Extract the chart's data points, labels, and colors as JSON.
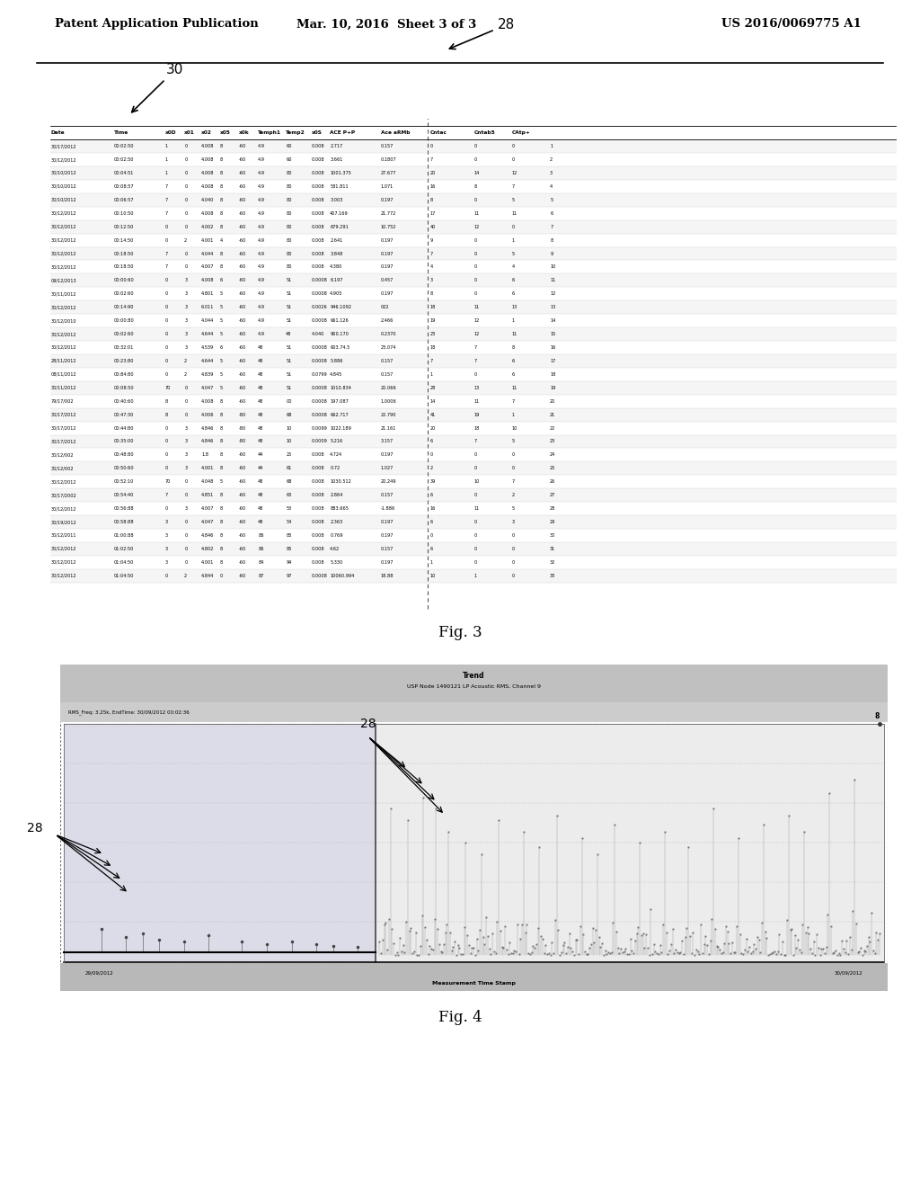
{
  "header_left": "Patent Application Publication",
  "header_mid": "Mar. 10, 2016  Sheet 3 of 3",
  "header_right": "US 2016/0069775 A1",
  "fig3_label": "Fig. 3",
  "fig4_label": "Fig. 4",
  "ref30": "30",
  "ref28_table": "28",
  "ref28_chart1": "28",
  "ref28_chart2": "28",
  "table_headers": [
    "Date",
    "Time",
    "x0D",
    "x01",
    "x02",
    "x05",
    "x0k",
    "Temph1",
    "Temp2",
    "x0S",
    "ACE P+P",
    "Ace aRMb",
    "Cntac",
    "Cntab5",
    "CAtp+",
    ""
  ],
  "table_rows": [
    [
      "30/17/2012",
      "00:02:50",
      "1",
      "0",
      "4.008",
      "8",
      "-60",
      "4.9",
      "60",
      "0.008",
      "2.717",
      "0.157",
      "0",
      "0",
      "0",
      "1"
    ],
    [
      "30/12/2012",
      "00:02:50",
      "1",
      "0",
      "4.008",
      "8",
      "-60",
      "4.9",
      "60",
      "0.008",
      "3.661",
      "0.1807",
      "7",
      "0",
      "0",
      "2"
    ],
    [
      "30/10/2012",
      "00:04:51",
      "1",
      "0",
      "4.008",
      "8",
      "-60",
      "4.9",
      "80",
      "0.008",
      "1001.375",
      "27.677",
      "20",
      "14",
      "12",
      "3"
    ],
    [
      "30/10/2012",
      "00:08:57",
      "7",
      "0",
      "4.008",
      "8",
      "-60",
      "4.9",
      "80",
      "0.008",
      "581.811",
      "1.071",
      "16",
      "8",
      "7",
      "4"
    ],
    [
      "30/10/2012",
      "00:06:57",
      "7",
      "0",
      "4.040",
      "8",
      "-60",
      "4.9",
      "80",
      "0.008",
      "3.003",
      "0.197",
      "8",
      "0",
      "5",
      "5"
    ],
    [
      "30/12/2012",
      "00:10:50",
      "7",
      "0",
      "4.008",
      "8",
      "-60",
      "4.9",
      "80",
      "0.008",
      "407.169",
      "21.772",
      "17",
      "11",
      "11",
      "6"
    ],
    [
      "30/12/2012",
      "00:12:50",
      "0",
      "0",
      "4.002",
      "8",
      "-60",
      "4.9",
      "80",
      "0.008",
      "679.291",
      "10.752",
      "40",
      "12",
      "0",
      "7"
    ],
    [
      "30/12/2012",
      "00:14:50",
      "0",
      "2",
      "4.001",
      "4",
      "-60",
      "4.9",
      "80",
      "0.008",
      "2.641",
      "0.197",
      "9",
      "0",
      "1",
      "8"
    ],
    [
      "30/12/2012",
      "00:18:50",
      "7",
      "0",
      "4.044",
      "8",
      "-60",
      "4.9",
      "80",
      "0.008",
      "3.848",
      "0.197",
      "7",
      "0",
      "5",
      "9"
    ],
    [
      "30/12/2012",
      "00:18:50",
      "7",
      "0",
      "4.007",
      "8",
      "-60",
      "4.9",
      "80",
      "0.008",
      "4.380",
      "0.197",
      "4",
      "0",
      "4",
      "10"
    ],
    [
      "09/12/2013",
      "00:00:60",
      "0",
      "3",
      "4.008",
      "6",
      "-60",
      "4.9",
      "51",
      "0.0008",
      "6.197",
      "0.457",
      "3",
      "0",
      "6",
      "11"
    ],
    [
      "30/11/2012",
      "00:02:60",
      "0",
      "3",
      "4.801",
      "5",
      "-60",
      "4.9",
      "51",
      "0.0008",
      "4.905",
      "0.197",
      "8",
      "0",
      "6",
      "12"
    ],
    [
      "30/12/2012",
      "00:14:90",
      "0",
      "3",
      "6.011",
      "5",
      "-60",
      "4.9",
      "51",
      "0.0026",
      "946.1092",
      "022",
      "18",
      "11",
      "13",
      "13"
    ],
    [
      "30/12/2010",
      "00:00:80",
      "0",
      "3",
      "4.044",
      "5",
      "-60",
      "4.9",
      "51",
      "0.0008",
      "661.126",
      "2.466",
      "19",
      "12",
      "1",
      "14"
    ],
    [
      "30/12/2012",
      "00:02:60",
      "0",
      "3",
      "4.644",
      "5",
      "-60",
      "4.9",
      "48",
      "4.040",
      "900.170",
      "0.2370",
      "23",
      "12",
      "11",
      "15"
    ],
    [
      "30/12/2012",
      "00:32:01",
      "0",
      "3",
      "4.539",
      "6",
      "-60",
      "48",
      "51",
      "0.0008",
      "603.74.5",
      "23.074",
      "18",
      "7",
      "8",
      "16"
    ],
    [
      "28/11/2012",
      "00:23:80",
      "0",
      "2",
      "4.644",
      "5",
      "-60",
      "48",
      "51",
      "0.0008",
      "5.886",
      "0.157",
      "7",
      "7",
      "6",
      "17"
    ],
    [
      "08/11/2012",
      "00:84:80",
      "0",
      "2",
      "4.839",
      "5",
      "-60",
      "48",
      "51",
      "0.0799",
      "4.845",
      "0.157",
      "1",
      "0",
      "6",
      "18"
    ],
    [
      "30/11/2012",
      "00:08:50",
      "70",
      "0",
      "4.047",
      "5",
      "-60",
      "48",
      "51",
      "0.0008",
      "1010.834",
      "20.066",
      "28",
      "13",
      "11",
      "19"
    ],
    [
      "79/17/002",
      "00:40:60",
      "8",
      "0",
      "4.008",
      "8",
      "-60",
      "48",
      "00",
      "0.0008",
      "197.087",
      "1.0006",
      "14",
      "11",
      "7",
      "20"
    ],
    [
      "30/17/2012",
      "00:47:30",
      "8",
      "0",
      "4.006",
      "8",
      "-80",
      "48",
      "68",
      "0.0008",
      "662.717",
      "22.790",
      "41",
      "19",
      "1",
      "21"
    ],
    [
      "30/17/2012",
      "00:44:80",
      "0",
      "3",
      "4.846",
      "8",
      "-80",
      "48",
      "10",
      "0.0099",
      "1022.189",
      "21.161",
      "20",
      "18",
      "10",
      "22"
    ],
    [
      "30/17/2012",
      "00:35:00",
      "0",
      "3",
      "4.846",
      "8",
      "-80",
      "48",
      "10",
      "0.0009",
      "5.216",
      "3.157",
      "6",
      "7",
      "5",
      "23"
    ],
    [
      "30/12/002",
      "00:48:80",
      "0",
      "3",
      "1.8",
      "8",
      "-60",
      "44",
      "25",
      "0.008",
      "4.724",
      "0.197",
      "0",
      "0",
      "0",
      "24"
    ],
    [
      "30/12/002",
      "00:50:60",
      "0",
      "3",
      "4.001",
      "8",
      "-60",
      "44",
      "61",
      "0.008",
      "0.72",
      "1.027",
      "2",
      "0",
      "0",
      "25"
    ],
    [
      "30/12/2012",
      "00:52:10",
      "70",
      "0",
      "4.048",
      "5",
      "-60",
      "48",
      "68",
      "0.008",
      "1030.512",
      "20.249",
      "39",
      "10",
      "7",
      "26"
    ],
    [
      "30/17/2002",
      "00:54:40",
      "7",
      "0",
      "4.851",
      "8",
      "-60",
      "48",
      "63",
      "0.008",
      "2.864",
      "0.157",
      "6",
      "0",
      "2",
      "27"
    ],
    [
      "30/12/2012",
      "00:56:88",
      "0",
      "3",
      "4.007",
      "8",
      "-60",
      "48",
      "53",
      "0.008",
      "883.665",
      "-1.886",
      "16",
      "11",
      "5",
      "28"
    ],
    [
      "30/19/2012",
      "00:58:88",
      "3",
      "0",
      "4.047",
      "8",
      "-60",
      "48",
      "54",
      "0.008",
      "2.363",
      "0.197",
      "6",
      "0",
      "3",
      "29"
    ],
    [
      "30/12/2011",
      "01:00:88",
      "3",
      "0",
      "4.846",
      "8",
      "-60",
      "86",
      "85",
      "0.008",
      "0.769",
      "0.197",
      "0",
      "0",
      "0",
      "30"
    ],
    [
      "30/12/2012",
      "01:02:50",
      "3",
      "0",
      "4.802",
      "8",
      "-60",
      "86",
      "85",
      "0.008",
      "4.62",
      "0.157",
      "6",
      "0",
      "0",
      "31"
    ],
    [
      "30/12/2012",
      "01:04:50",
      "3",
      "0",
      "4.001",
      "8",
      "-60",
      "84",
      "94",
      "0.008",
      "5.330",
      "0.197",
      "1",
      "0",
      "0",
      "32"
    ],
    [
      "30/12/2012",
      "01:04:50",
      "0",
      "2",
      "4.844",
      "0",
      "-60",
      "87",
      "97",
      "0.0008",
      "10060.994",
      "18.88",
      "10",
      "1",
      "0",
      "33"
    ]
  ],
  "chart_title": "Trend",
  "chart_subtitle": "USP Node 1490121 LP Acoustic RMS, Channel 9",
  "chart_left_label": "RMS_Freq: 3.25k, EndTime: 30/09/2012 00:02:36",
  "chart_y_right_label": "8",
  "chart_x_left": "29/09/2012",
  "chart_x_right": "30/09/2012",
  "chart_x_label": "Measurement Time Stamp",
  "background_color": "#ffffff",
  "chart_bg": "#d8d8d8",
  "chart_title_bg": "#c0c0c0",
  "chart_left_bg": "#dcdce8",
  "chart_right_bg": "#ececec",
  "chart_bottom_bg": "#b8b8b8"
}
